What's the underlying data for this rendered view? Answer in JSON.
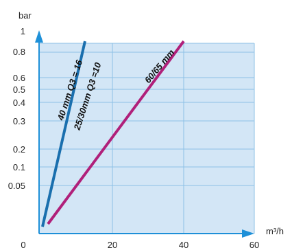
{
  "chart_data": {
    "type": "line",
    "ylabel": "bar",
    "xlabel": "m³/h",
    "xlim": [
      0,
      60
    ],
    "x_ticks": [
      "0",
      "20",
      "40",
      "60"
    ],
    "y_tick_labels": [
      "1",
      "0.8",
      "0.6",
      "0.5",
      "0.4",
      "0.3",
      "0.2",
      "0.1",
      "0.05"
    ],
    "y_scale": "nonlinear (as printed)",
    "grid": true,
    "background_color": "#d3e6f6",
    "grid_color": "#8cc0e6",
    "axis_color": "#1e90d8",
    "series": [
      {
        "name": "40 mm Q3 = 16",
        "color": "#1a6fae",
        "points": [
          {
            "x": 2.5,
            "y_tick": "0.0"
          },
          {
            "x": 11.5,
            "y": 0.9
          }
        ]
      },
      {
        "name": "25/30mm Q3 =10",
        "color": "#1a6fae",
        "points": [
          {
            "x": 2.5
          },
          {
            "x": 11.5,
            "y": 0.9
          }
        ]
      },
      {
        "name": "60/65 mm",
        "color": "#b0207a",
        "points": [
          {
            "x": 3.5
          },
          {
            "x": 38,
            "y": 0.9
          }
        ]
      }
    ]
  }
}
